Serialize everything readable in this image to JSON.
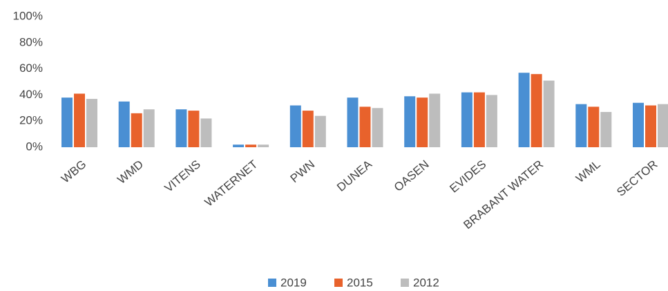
{
  "chart_data": {
    "type": "bar",
    "categories": [
      "WBG",
      "WMD",
      "VITENS",
      "WATERNET",
      "PWN",
      "DUNEA",
      "OASEN",
      "EVIDES",
      "BRABANT WATER",
      "WML",
      "SECTOR"
    ],
    "series": [
      {
        "name": "2019",
        "color": "#4a8fd3",
        "values": [
          38,
          35,
          29,
          2,
          32,
          38,
          39,
          42,
          57,
          33,
          34
        ]
      },
      {
        "name": "2015",
        "color": "#e8622c",
        "values": [
          41,
          26,
          28,
          2,
          28,
          31,
          38,
          42,
          56,
          31,
          32
        ]
      },
      {
        "name": "2012",
        "color": "#bdbdbd",
        "values": [
          37,
          29,
          22,
          2,
          24,
          30,
          41,
          40,
          51,
          27,
          33
        ]
      }
    ],
    "ylim": [
      0,
      100
    ],
    "yticks": [
      {
        "value": 0,
        "label": "0%"
      },
      {
        "value": 20,
        "label": "20%"
      },
      {
        "value": 40,
        "label": "40%"
      },
      {
        "value": 60,
        "label": "60%"
      },
      {
        "value": 80,
        "label": "80%"
      },
      {
        "value": 100,
        "label": "100%"
      }
    ],
    "grid": false,
    "legend": "bottom"
  }
}
